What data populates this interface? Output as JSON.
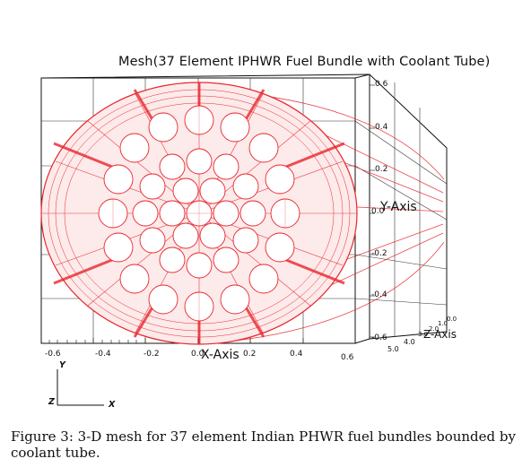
{
  "figure": {
    "title": "Mesh(37 Element IPHWR Fuel Bundle with Coolant Tube)",
    "caption": "Figure 3: 3-D mesh for 37 element Indian PHWR fuel bundles bounded by coolant tube.",
    "mesh_color": "#e8262d",
    "frame_color": "#111111",
    "axis_labels": {
      "x": "X-Axis",
      "y": "Y-Axis",
      "z": "Z-Axis"
    },
    "x_ticks": [
      "-0.6",
      "-0.4",
      "-0.2",
      "0.0",
      "0.2",
      "0.4",
      "0.6"
    ],
    "y_ticks": [
      "0.6",
      "0.4",
      "0.2",
      "0.0",
      "-0.2",
      "-0.4",
      "-0.6"
    ],
    "z_ticks": [
      "0.0",
      "1.0",
      "2.0",
      "3.0",
      "4.0",
      "5.0"
    ],
    "triad": {
      "y": "Y",
      "z": "Z",
      "x": "X"
    }
  }
}
